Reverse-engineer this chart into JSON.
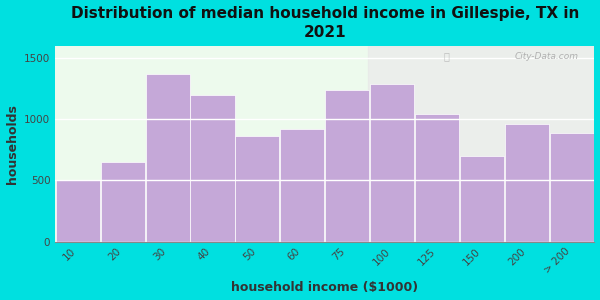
{
  "title": "Distribution of median household income in Gillespie, TX in\n2021",
  "xlabel": "household income ($1000)",
  "ylabel": "households",
  "categories": [
    "10",
    "20",
    "30",
    "40",
    "50",
    "60",
    "75",
    "100",
    "125",
    "150",
    "200",
    "> 200"
  ],
  "values": [
    500,
    650,
    1370,
    1200,
    860,
    920,
    1240,
    1290,
    1040,
    700,
    960,
    890
  ],
  "bar_color": "#c5a8d8",
  "bar_edge_color": "#ffffff",
  "background_outer": "#00e0e0",
  "ylim": [
    0,
    1600
  ],
  "yticks": [
    0,
    500,
    1000,
    1500
  ],
  "title_fontsize": 11,
  "axis_label_fontsize": 9,
  "tick_fontsize": 7.5,
  "watermark_text": "City-Data.com"
}
